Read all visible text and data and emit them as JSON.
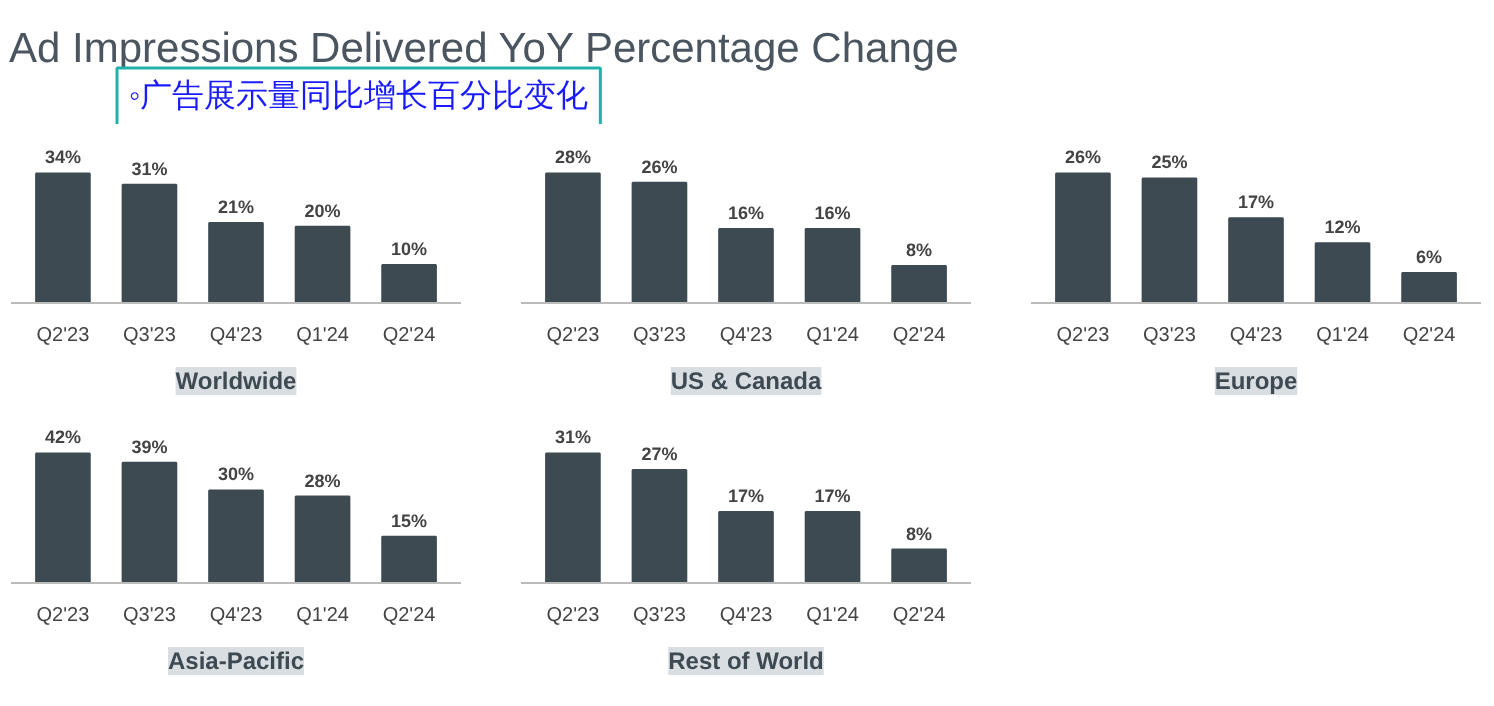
{
  "chart_data": [
    {
      "type": "other",
      "title": "Ad Impressions Delivered YoY Percentage Change",
      "annotations": [
        "◦广告展示量同比增长百分比变化"
      ]
    },
    {
      "type": "bar",
      "xlabel": "Worldwide",
      "categories": [
        "Q2'23",
        "Q3'23",
        "Q4'23",
        "Q1'24",
        "Q2'24"
      ],
      "values": [
        34,
        31,
        21,
        20,
        10
      ],
      "value_labels": [
        "34%",
        "31%",
        "21%",
        "20%",
        "10%"
      ],
      "color": "#3e4a52"
    },
    {
      "type": "bar",
      "xlabel": "US & Canada",
      "categories": [
        "Q2'23",
        "Q3'23",
        "Q4'23",
        "Q1'24",
        "Q2'24"
      ],
      "values": [
        28,
        26,
        16,
        16,
        8
      ],
      "value_labels": [
        "28%",
        "26%",
        "16%",
        "16%",
        "8%"
      ],
      "color": "#3e4a52"
    },
    {
      "type": "bar",
      "xlabel": "Europe",
      "categories": [
        "Q2'23",
        "Q3'23",
        "Q4'23",
        "Q1'24",
        "Q2'24"
      ],
      "values": [
        26,
        25,
        17,
        12,
        6
      ],
      "value_labels": [
        "26%",
        "25%",
        "17%",
        "12%",
        "6%"
      ],
      "color": "#3e4a52"
    },
    {
      "type": "bar",
      "xlabel": "Asia-Pacific",
      "categories": [
        "Q2'23",
        "Q3'23",
        "Q4'23",
        "Q1'24",
        "Q2'24"
      ],
      "values": [
        42,
        39,
        30,
        28,
        15
      ],
      "value_labels": [
        "42%",
        "39%",
        "30%",
        "28%",
        "15%"
      ],
      "color": "#3e4a52"
    },
    {
      "type": "bar",
      "xlabel": "Rest of World",
      "categories": [
        "Q2'23",
        "Q3'23",
        "Q4'23",
        "Q1'24",
        "Q2'24"
      ],
      "values": [
        31,
        27,
        17,
        17,
        8
      ],
      "value_labels": [
        "31%",
        "27%",
        "17%",
        "17%",
        "8%"
      ],
      "color": "#3e4a52"
    }
  ]
}
